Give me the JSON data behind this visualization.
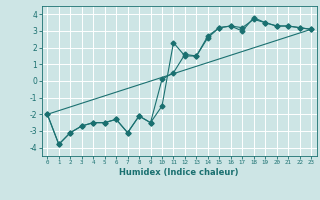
{
  "title": "",
  "xlabel": "Humidex (Indice chaleur)",
  "xlim": [
    -0.5,
    23.5
  ],
  "ylim": [
    -4.5,
    4.5
  ],
  "xticks": [
    0,
    1,
    2,
    3,
    4,
    5,
    6,
    7,
    8,
    9,
    10,
    11,
    12,
    13,
    14,
    15,
    16,
    17,
    18,
    19,
    20,
    21,
    22,
    23
  ],
  "yticks": [
    -4,
    -3,
    -2,
    -1,
    0,
    1,
    2,
    3,
    4
  ],
  "background_color": "#cde5e5",
  "grid_color": "#ffffff",
  "line_color": "#1a7070",
  "line1_x": [
    0,
    1,
    2,
    3,
    4,
    5,
    6,
    7,
    8,
    9,
    10,
    11,
    12,
    13,
    14,
    15,
    16,
    17,
    18,
    19,
    20,
    21,
    22,
    23
  ],
  "line1_y": [
    -2.0,
    -3.8,
    -3.1,
    -2.7,
    -2.5,
    -2.5,
    -2.3,
    -3.1,
    -2.1,
    -2.5,
    -1.5,
    2.3,
    1.5,
    1.5,
    2.6,
    3.2,
    3.3,
    3.2,
    3.7,
    3.5,
    3.3,
    3.3,
    3.2,
    3.1
  ],
  "line2_x": [
    0,
    1,
    2,
    3,
    4,
    5,
    6,
    7,
    8,
    9,
    10,
    11,
    12,
    13,
    14,
    15,
    16,
    17,
    18,
    19,
    20,
    21,
    22,
    23
  ],
  "line2_y": [
    -2.0,
    -3.8,
    -3.1,
    -2.7,
    -2.5,
    -2.5,
    -2.3,
    -3.1,
    -2.1,
    -2.5,
    0.1,
    0.5,
    1.6,
    1.5,
    2.7,
    3.2,
    3.3,
    3.0,
    3.8,
    3.5,
    3.3,
    3.3,
    3.2,
    3.1
  ],
  "line3_x": [
    0,
    23
  ],
  "line3_y": [
    -2.0,
    3.1
  ],
  "marker": "D",
  "markersize": 2.5,
  "linewidth": 0.8
}
